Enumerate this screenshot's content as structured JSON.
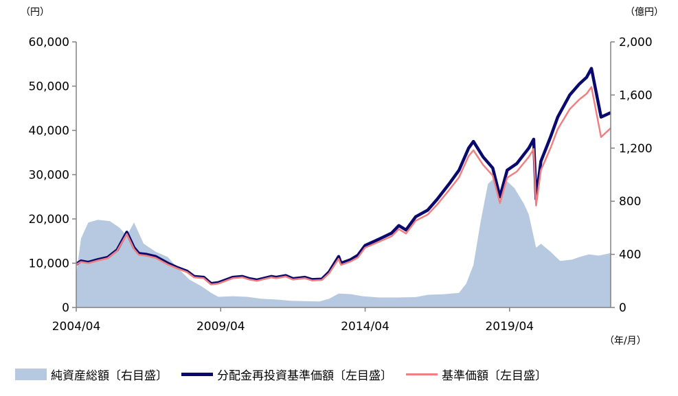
{
  "chart_data": {
    "type": "area+line",
    "left_unit": "（円）",
    "right_unit": "（億円）",
    "x_unit": "（年/月）",
    "x_ticks": [
      "2004/04",
      "2009/04",
      "2014/04",
      "2019/04"
    ],
    "x_range": [
      "2004/04",
      "2022/10"
    ],
    "y_left": {
      "range": [
        0,
        60000
      ],
      "ticks": [
        "0",
        "10,000",
        "20,000",
        "30,000",
        "40,000",
        "50,000",
        "60,000"
      ]
    },
    "y_right": {
      "range": [
        0,
        2000
      ],
      "ticks": [
        "0",
        "400",
        "800",
        "1,200",
        "1,600",
        "2,000"
      ]
    },
    "grid": false,
    "legend_position": "bottom",
    "series": [
      {
        "name": "純資産総額〔右目盛〕",
        "axis": "right",
        "kind": "area",
        "color": "#b6c9e0",
        "x": [
          "2004/04",
          "2004/06",
          "2004/09",
          "2005/01",
          "2005/06",
          "2005/10",
          "2006/01",
          "2006/04",
          "2006/08",
          "2007/01",
          "2007/06",
          "2007/10",
          "2008/03",
          "2008/08",
          "2008/12",
          "2009/03",
          "2009/09",
          "2010/03",
          "2010/09",
          "2011/03",
          "2011/09",
          "2012/03",
          "2012/09",
          "2013/01",
          "2013/05",
          "2013/10",
          "2014/03",
          "2014/10",
          "2015/05",
          "2016/01",
          "2016/06",
          "2017/01",
          "2017/07",
          "2017/10",
          "2018/01",
          "2018/04",
          "2018/07",
          "2018/10",
          "2018/12",
          "2019/03",
          "2019/06",
          "2019/10",
          "2019/12",
          "2020/03",
          "2020/05",
          "2020/09",
          "2021/01",
          "2021/06",
          "2021/09",
          "2022/01",
          "2022/05",
          "2022/10"
        ],
        "values": [
          250,
          520,
          640,
          660,
          650,
          600,
          540,
          640,
          480,
          420,
          380,
          300,
          210,
          160,
          110,
          80,
          85,
          80,
          65,
          60,
          50,
          48,
          45,
          65,
          105,
          100,
          85,
          75,
          75,
          78,
          95,
          100,
          110,
          180,
          320,
          650,
          930,
          980,
          800,
          950,
          900,
          780,
          700,
          450,
          480,
          420,
          350,
          360,
          380,
          400,
          390,
          410
        ]
      },
      {
        "name": "分配金再投資基準価額〔左目盛〕",
        "axis": "left",
        "kind": "line",
        "color": "#0a0a6e",
        "x": [
          "2004/04",
          "2004/06",
          "2004/09",
          "2005/01",
          "2005/05",
          "2005/09",
          "2006/01",
          "2006/04",
          "2006/06",
          "2006/09",
          "2007/01",
          "2007/06",
          "2007/10",
          "2008/02",
          "2008/05",
          "2008/09",
          "2008/12",
          "2009/03",
          "2009/06",
          "2009/09",
          "2010/01",
          "2010/04",
          "2010/07",
          "2011/01",
          "2011/03",
          "2011/07",
          "2011/10",
          "2012/03",
          "2012/06",
          "2012/10",
          "2013/01",
          "2013/05",
          "2013/06",
          "2013/10",
          "2014/01",
          "2014/04",
          "2014/10",
          "2015/03",
          "2015/06",
          "2015/09",
          "2016/01",
          "2016/06",
          "2016/10",
          "2017/03",
          "2017/07",
          "2017/11",
          "2018/01",
          "2018/05",
          "2018/09",
          "2018/12",
          "2019/03",
          "2019/07",
          "2019/12",
          "2020/02",
          "2020/03",
          "2020/05",
          "2020/09",
          "2020/12",
          "2021/05",
          "2021/09",
          "2021/12",
          "2022/02",
          "2022/06",
          "2022/10"
        ],
        "values": [
          9800,
          10500,
          10200,
          10800,
          11300,
          13000,
          17000,
          13500,
          12200,
          12000,
          11500,
          10000,
          9000,
          8200,
          7000,
          6800,
          5400,
          5600,
          6200,
          6800,
          7000,
          6500,
          6200,
          7000,
          6800,
          7200,
          6500,
          6800,
          6300,
          6400,
          8000,
          11500,
          10000,
          10800,
          11800,
          14000,
          15500,
          16800,
          18500,
          17500,
          20500,
          22000,
          24500,
          28000,
          31000,
          36000,
          37500,
          34000,
          31500,
          25000,
          31000,
          32500,
          36000,
          38000,
          24500,
          33000,
          38500,
          43000,
          48000,
          50500,
          52000,
          54000,
          43000,
          44000
        ]
      },
      {
        "name": "基準価額〔左目盛〕",
        "axis": "left",
        "kind": "line",
        "color": "#f08080",
        "x": [
          "2004/04",
          "2004/06",
          "2004/09",
          "2005/01",
          "2005/05",
          "2005/09",
          "2006/01",
          "2006/04",
          "2006/06",
          "2006/09",
          "2007/01",
          "2007/06",
          "2007/10",
          "2008/02",
          "2008/05",
          "2008/09",
          "2008/12",
          "2009/03",
          "2009/06",
          "2009/09",
          "2010/01",
          "2010/04",
          "2010/07",
          "2011/01",
          "2011/03",
          "2011/07",
          "2011/10",
          "2012/03",
          "2012/06",
          "2012/10",
          "2013/01",
          "2013/05",
          "2013/06",
          "2013/10",
          "2014/01",
          "2014/04",
          "2014/10",
          "2015/03",
          "2015/06",
          "2015/09",
          "2016/01",
          "2016/06",
          "2016/10",
          "2017/03",
          "2017/07",
          "2017/11",
          "2018/01",
          "2018/05",
          "2018/09",
          "2018/12",
          "2019/03",
          "2019/07",
          "2019/12",
          "2020/02",
          "2020/03",
          "2020/05",
          "2020/09",
          "2020/12",
          "2021/05",
          "2021/09",
          "2021/12",
          "2022/02",
          "2022/06",
          "2022/10"
        ],
        "values": [
          9700,
          10300,
          10000,
          10600,
          11100,
          12800,
          16600,
          13200,
          11900,
          11700,
          11200,
          9700,
          8800,
          8000,
          6800,
          6600,
          5200,
          5400,
          6000,
          6600,
          6800,
          6300,
          6000,
          6800,
          6600,
          7000,
          6300,
          6600,
          6100,
          6200,
          7700,
          11000,
          9600,
          10400,
          11300,
          13500,
          14900,
          16100,
          17700,
          16700,
          19600,
          21000,
          23300,
          26600,
          29400,
          34200,
          35500,
          32200,
          29800,
          23600,
          29300,
          30700,
          34000,
          35800,
          23000,
          31000,
          36000,
          40300,
          44800,
          47000,
          48300,
          49800,
          38500,
          40500
        ]
      }
    ]
  }
}
